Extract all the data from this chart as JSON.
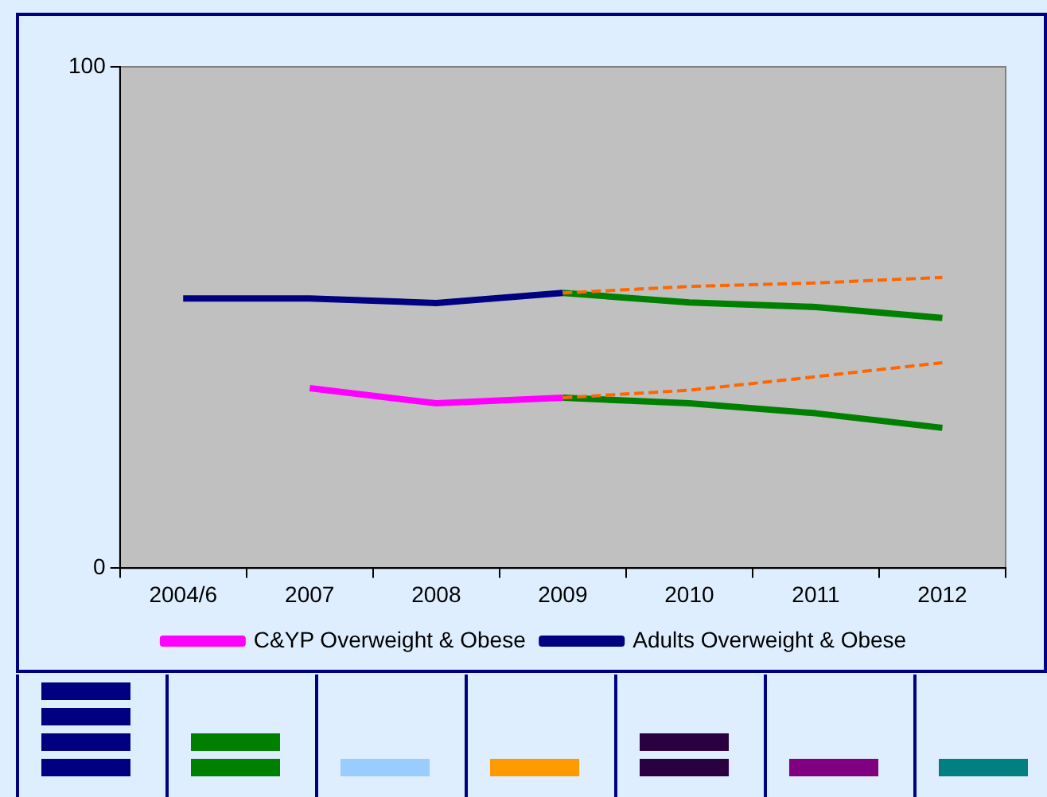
{
  "chart_data": {
    "type": "line",
    "categories": [
      "2004/6",
      "2007",
      "2008",
      "2009",
      "2010",
      "2011",
      "2012"
    ],
    "series": [
      {
        "name": "C&YP Overweight & Obese",
        "color": "#ff00ff",
        "values": [
          null,
          35.9,
          32.9,
          34.0,
          null,
          null,
          null
        ]
      },
      {
        "name": "Adults Overweight & Obese",
        "color": "#000080",
        "values": [
          53.8,
          53.8,
          52.9,
          54.9,
          null,
          null,
          null
        ]
      },
      {
        "color": "#008000",
        "values": [
          null,
          null,
          null,
          54.9,
          53.0,
          52.1,
          49.9
        ]
      },
      {
        "color": "#008000",
        "values": [
          null,
          null,
          null,
          34.0,
          32.9,
          30.9,
          28.0
        ]
      },
      {
        "color": "#ff6600",
        "line_style": "dashed",
        "values": [
          null,
          null,
          null,
          54.9,
          56.2,
          56.9,
          58.0
        ]
      },
      {
        "color": "#ff6600",
        "line_style": "dashed",
        "values": [
          null,
          null,
          null,
          34.0,
          35.5,
          38.2,
          41.0
        ]
      }
    ],
    "ylim": [
      0,
      100
    ],
    "yticks": [
      0,
      100
    ],
    "grid": false,
    "legend": "bottom",
    "marker": "none"
  }
}
